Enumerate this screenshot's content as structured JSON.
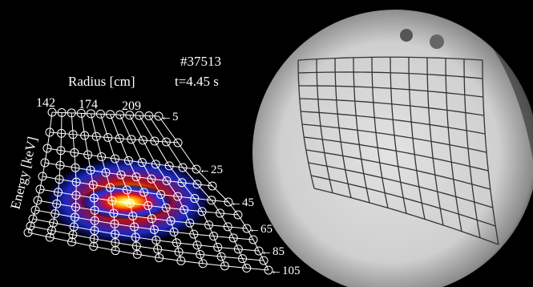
{
  "shot": "#37513",
  "time": "t=4.45 s",
  "radius_axis": {
    "title": "Radius [cm]",
    "labels": [
      "142",
      "174",
      "209"
    ]
  },
  "energy_axis": {
    "title": "Energy [keV]",
    "labels": [
      "←5",
      "←25",
      "←45",
      "←65",
      "←85",
      "←105"
    ]
  }
}
